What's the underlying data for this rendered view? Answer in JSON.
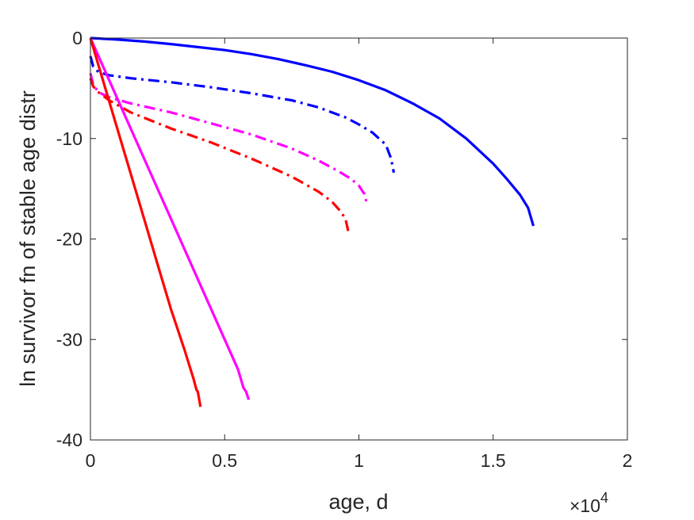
{
  "chart_data": {
    "type": "line",
    "xlabel": "age, d",
    "ylabel": "ln survivor fn of stable age distr",
    "x_multiplier_label": "×10",
    "x_multiplier_exponent": "4",
    "xlim": [
      0,
      20000
    ],
    "ylim": [
      -40,
      0
    ],
    "xticks": [
      0,
      5000,
      10000,
      15000,
      20000
    ],
    "xtick_labels": [
      "0",
      "0.5",
      "1",
      "1.5",
      "2"
    ],
    "yticks": [
      0,
      -10,
      -20,
      -30,
      -40
    ],
    "ytick_labels": [
      "0",
      "-10",
      "-20",
      "-30",
      "-40"
    ],
    "grid": false,
    "box": true,
    "series": [
      {
        "color": "#0000ff",
        "style": "solid",
        "x": [
          0,
          1000,
          2000,
          3000,
          4000,
          5000,
          6000,
          7000,
          8000,
          9000,
          10000,
          11000,
          12000,
          13000,
          14000,
          15000,
          15500,
          16000,
          16300,
          16500
        ],
        "y": [
          0,
          -0.15,
          -0.35,
          -0.6,
          -0.9,
          -1.2,
          -1.6,
          -2.1,
          -2.7,
          -3.35,
          -4.2,
          -5.2,
          -6.5,
          -8.0,
          -10.0,
          -12.5,
          -14.0,
          -15.6,
          -16.9,
          -18.7
        ]
      },
      {
        "color": "#0000ff",
        "style": "dashdot",
        "x": [
          0,
          100,
          300,
          700,
          1500,
          3000,
          4500,
          6000,
          7500,
          8500,
          9500,
          10000,
          10500,
          11000,
          11200,
          11300
        ],
        "y": [
          -1.8,
          -2.8,
          -3.4,
          -3.7,
          -4.0,
          -4.4,
          -4.9,
          -5.5,
          -6.2,
          -6.9,
          -7.9,
          -8.6,
          -9.4,
          -10.6,
          -12.0,
          -13.4
        ]
      },
      {
        "color": "#ff00ff",
        "style": "dashdot",
        "x": [
          0,
          100,
          300,
          700,
          1500,
          3000,
          4500,
          6000,
          7500,
          8500,
          9200,
          9700,
          10000,
          10200,
          10300
        ],
        "y": [
          -3.5,
          -4.6,
          -5.4,
          -5.9,
          -6.5,
          -7.4,
          -8.5,
          -9.6,
          -11.0,
          -12.2,
          -13.2,
          -14.0,
          -14.7,
          -15.5,
          -16.5
        ]
      },
      {
        "color": "#ff0000",
        "style": "dashdot",
        "x": [
          0,
          100,
          300,
          700,
          1500,
          3000,
          4500,
          6000,
          7500,
          8500,
          9000,
          9300,
          9500,
          9600
        ],
        "y": [
          -4.0,
          -4.8,
          -5.4,
          -6.2,
          -7.4,
          -9.0,
          -10.4,
          -12.0,
          -13.8,
          -15.3,
          -16.3,
          -17.2,
          -18.0,
          -19.2
        ]
      },
      {
        "color": "#ff00ff",
        "style": "solid",
        "x": [
          0,
          1000,
          2000,
          3000,
          4000,
          5000,
          5500,
          5700,
          5800,
          5900
        ],
        "y": [
          0,
          -6.0,
          -12.0,
          -18.0,
          -24.0,
          -30.0,
          -33.0,
          -34.8,
          -35.2,
          -36.0
        ]
      },
      {
        "color": "#ff0000",
        "style": "solid",
        "x": [
          0,
          500,
          1000,
          1500,
          2000,
          2500,
          3000,
          3500,
          3850,
          3950,
          4000,
          4100
        ],
        "y": [
          0,
          -4.5,
          -9.0,
          -13.5,
          -18.0,
          -22.5,
          -27.0,
          -31.0,
          -34.0,
          -35.0,
          -35.2,
          -36.7
        ]
      }
    ]
  }
}
